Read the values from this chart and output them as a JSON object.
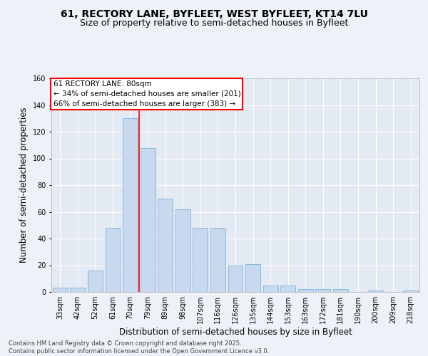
{
  "title1": "61, RECTORY LANE, BYFLEET, WEST BYFLEET, KT14 7LU",
  "title2": "Size of property relative to semi-detached houses in Byfleet",
  "xlabel": "Distribution of semi-detached houses by size in Byfleet",
  "ylabel": "Number of semi-detached properties",
  "categories": [
    "33sqm",
    "42sqm",
    "52sqm",
    "61sqm",
    "70sqm",
    "79sqm",
    "89sqm",
    "98sqm",
    "107sqm",
    "116sqm",
    "126sqm",
    "135sqm",
    "144sqm",
    "153sqm",
    "163sqm",
    "172sqm",
    "181sqm",
    "190sqm",
    "200sqm",
    "209sqm",
    "218sqm"
  ],
  "values": [
    3,
    3,
    16,
    48,
    130,
    108,
    70,
    62,
    48,
    48,
    20,
    21,
    5,
    5,
    2,
    2,
    2,
    0,
    1,
    0,
    1
  ],
  "bar_color": "#c8d8ee",
  "bar_edge_color": "#6aaad4",
  "bar_width": 0.85,
  "ylim": [
    0,
    160
  ],
  "yticks": [
    0,
    20,
    40,
    60,
    80,
    100,
    120,
    140,
    160
  ],
  "red_line_index": 5,
  "annotation_title": "61 RECTORY LANE: 80sqm",
  "annotation_line1": "← 34% of semi-detached houses are smaller (201)",
  "annotation_line2": "66% of semi-detached houses are larger (383) →",
  "footnote1": "Contains HM Land Registry data © Crown copyright and database right 2025.",
  "footnote2": "Contains public sector information licensed under the Open Government Licence v3.0.",
  "bg_color": "#eef2f8",
  "plot_bg_color": "#e4eaf4",
  "grid_color": "#ffffff",
  "title_fontsize": 10,
  "subtitle_fontsize": 9,
  "axis_label_fontsize": 8.5,
  "tick_fontsize": 7,
  "annot_fontsize": 7.5,
  "footnote_fontsize": 6
}
